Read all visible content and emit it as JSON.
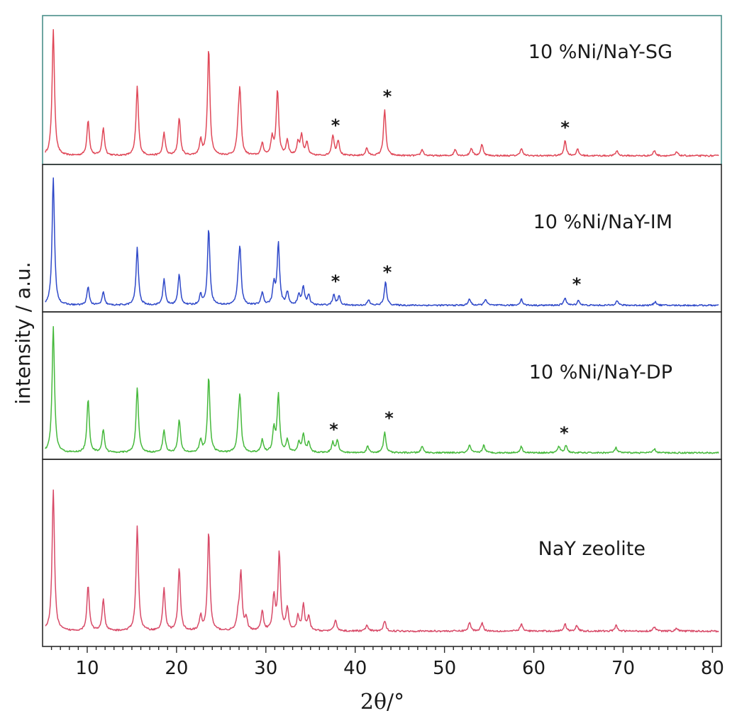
{
  "chart_data": {
    "type": "line",
    "xlabel": "2θ/°",
    "ylabel": "intensity / a.u.",
    "xlim": [
      5,
      81
    ],
    "xticks": [
      10,
      20,
      30,
      40,
      50,
      60,
      70,
      80
    ],
    "grid": false,
    "legend": "none (series labels printed inside each stacked panel)",
    "marker_symbol": "*",
    "series": [
      {
        "name": "10 %Ni/NaY-SG",
        "color": "#e04858",
        "peaks": [
          [
            6.2,
            1.0
          ],
          [
            10.1,
            0.28
          ],
          [
            11.8,
            0.22
          ],
          [
            15.6,
            0.55
          ],
          [
            18.6,
            0.18
          ],
          [
            20.3,
            0.3
          ],
          [
            22.7,
            0.12
          ],
          [
            23.6,
            0.85
          ],
          [
            26.9,
            0.16
          ],
          [
            27.1,
            0.48
          ],
          [
            29.6,
            0.1
          ],
          [
            30.7,
            0.14
          ],
          [
            31.3,
            0.52
          ],
          [
            32.4,
            0.12
          ],
          [
            33.6,
            0.1
          ],
          [
            34.0,
            0.16
          ],
          [
            34.6,
            0.1
          ],
          [
            37.5,
            0.16
          ],
          [
            38.1,
            0.12
          ],
          [
            41.3,
            0.06
          ],
          [
            43.3,
            0.36
          ],
          [
            47.5,
            0.05
          ],
          [
            51.2,
            0.05
          ],
          [
            53.0,
            0.06
          ],
          [
            54.2,
            0.09
          ],
          [
            58.6,
            0.06
          ],
          [
            63.5,
            0.12
          ],
          [
            64.9,
            0.05
          ],
          [
            69.3,
            0.04
          ],
          [
            73.5,
            0.04
          ],
          [
            76.0,
            0.03
          ]
        ],
        "stars_at": [
          37.8,
          43.6,
          63.5
        ]
      },
      {
        "name": "10 %Ni/NaY-IM",
        "color": "#2f49c9",
        "peaks": [
          [
            6.2,
            1.0
          ],
          [
            10.1,
            0.14
          ],
          [
            11.8,
            0.1
          ],
          [
            15.6,
            0.45
          ],
          [
            18.6,
            0.2
          ],
          [
            20.3,
            0.24
          ],
          [
            22.7,
            0.08
          ],
          [
            23.6,
            0.6
          ],
          [
            26.9,
            0.12
          ],
          [
            27.1,
            0.42
          ],
          [
            29.6,
            0.1
          ],
          [
            30.9,
            0.16
          ],
          [
            31.4,
            0.48
          ],
          [
            32.4,
            0.1
          ],
          [
            33.7,
            0.08
          ],
          [
            34.2,
            0.14
          ],
          [
            34.8,
            0.08
          ],
          [
            37.6,
            0.08
          ],
          [
            38.2,
            0.07
          ],
          [
            41.5,
            0.04
          ],
          [
            43.4,
            0.18
          ],
          [
            52.8,
            0.05
          ],
          [
            54.6,
            0.05
          ],
          [
            58.6,
            0.05
          ],
          [
            63.5,
            0.06
          ],
          [
            65.0,
            0.04
          ],
          [
            69.3,
            0.04
          ],
          [
            73.6,
            0.03
          ]
        ],
        "stars_at": [
          37.8,
          43.6,
          64.8
        ]
      },
      {
        "name": "10 %Ni/NaY-DP",
        "color": "#46b93c",
        "peaks": [
          [
            6.2,
            1.0
          ],
          [
            10.1,
            0.42
          ],
          [
            11.8,
            0.18
          ],
          [
            15.6,
            0.52
          ],
          [
            18.6,
            0.18
          ],
          [
            20.3,
            0.26
          ],
          [
            22.7,
            0.1
          ],
          [
            23.6,
            0.6
          ],
          [
            26.9,
            0.12
          ],
          [
            27.1,
            0.42
          ],
          [
            29.6,
            0.1
          ],
          [
            30.9,
            0.18
          ],
          [
            31.4,
            0.46
          ],
          [
            32.4,
            0.1
          ],
          [
            33.7,
            0.08
          ],
          [
            34.2,
            0.14
          ],
          [
            34.8,
            0.08
          ],
          [
            37.5,
            0.08
          ],
          [
            38.0,
            0.1
          ],
          [
            41.4,
            0.05
          ],
          [
            43.3,
            0.16
          ],
          [
            47.5,
            0.05
          ],
          [
            52.8,
            0.06
          ],
          [
            54.4,
            0.06
          ],
          [
            58.6,
            0.05
          ],
          [
            62.8,
            0.05
          ],
          [
            63.6,
            0.06
          ],
          [
            69.2,
            0.04
          ],
          [
            73.5,
            0.03
          ]
        ],
        "stars_at": [
          37.6,
          43.8,
          63.4
        ]
      },
      {
        "name": "NaY zeolite",
        "color": "#d84a68",
        "peaks": [
          [
            6.2,
            1.0
          ],
          [
            10.1,
            0.32
          ],
          [
            11.8,
            0.22
          ],
          [
            15.6,
            0.74
          ],
          [
            18.6,
            0.3
          ],
          [
            20.3,
            0.44
          ],
          [
            22.7,
            0.1
          ],
          [
            23.6,
            0.7
          ],
          [
            26.9,
            0.1
          ],
          [
            27.2,
            0.4
          ],
          [
            27.8,
            0.08
          ],
          [
            29.6,
            0.14
          ],
          [
            30.9,
            0.24
          ],
          [
            31.5,
            0.55
          ],
          [
            32.4,
            0.16
          ],
          [
            33.6,
            0.1
          ],
          [
            34.2,
            0.18
          ],
          [
            34.8,
            0.1
          ],
          [
            37.8,
            0.08
          ],
          [
            41.3,
            0.04
          ],
          [
            43.3,
            0.07
          ],
          [
            52.8,
            0.06
          ],
          [
            54.2,
            0.06
          ],
          [
            58.6,
            0.05
          ],
          [
            63.5,
            0.05
          ],
          [
            64.8,
            0.04
          ],
          [
            69.2,
            0.04
          ],
          [
            73.5,
            0.03
          ],
          [
            76.0,
            0.02
          ]
        ],
        "stars_at": []
      }
    ]
  }
}
